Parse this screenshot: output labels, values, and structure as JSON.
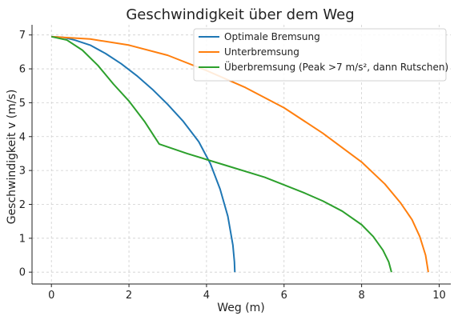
{
  "chart_data": {
    "type": "line",
    "title": "Geschwindigkeit über dem Weg",
    "xlabel": "Weg (m)",
    "ylabel": "Geschwindigkeit v (m/s)",
    "xlim": [
      -0.5,
      10.3
    ],
    "ylim": [
      -0.35,
      7.3
    ],
    "x_ticks": [
      0,
      2,
      4,
      6,
      8,
      10
    ],
    "y_ticks": [
      0,
      1,
      2,
      3,
      4,
      5,
      6,
      7
    ],
    "grid": true,
    "legend_position": "top-right",
    "series": [
      {
        "name": "Optimale Bremsung",
        "color": "#1f77b4",
        "points": [
          [
            0,
            6.95
          ],
          [
            0.3,
            6.93
          ],
          [
            0.6,
            6.85
          ],
          [
            1.0,
            6.7
          ],
          [
            1.4,
            6.45
          ],
          [
            1.8,
            6.15
          ],
          [
            2.2,
            5.8
          ],
          [
            2.6,
            5.4
          ],
          [
            3.0,
            4.95
          ],
          [
            3.4,
            4.45
          ],
          [
            3.8,
            3.85
          ],
          [
            4.1,
            3.2
          ],
          [
            4.35,
            2.45
          ],
          [
            4.55,
            1.65
          ],
          [
            4.68,
            0.8
          ],
          [
            4.72,
            0.3
          ],
          [
            4.73,
            0.0
          ]
        ]
      },
      {
        "name": "Unterbremsung",
        "color": "#ff7f0e",
        "points": [
          [
            0,
            6.95
          ],
          [
            1.0,
            6.88
          ],
          [
            2.0,
            6.7
          ],
          [
            3.0,
            6.4
          ],
          [
            4.0,
            5.95
          ],
          [
            5.0,
            5.45
          ],
          [
            6.0,
            4.85
          ],
          [
            7.0,
            4.1
          ],
          [
            8.0,
            3.25
          ],
          [
            8.6,
            2.6
          ],
          [
            9.0,
            2.05
          ],
          [
            9.3,
            1.55
          ],
          [
            9.5,
            1.05
          ],
          [
            9.65,
            0.5
          ],
          [
            9.72,
            0.0
          ]
        ]
      },
      {
        "name": "Überbremsung (Peak >7 m/s², dann Rutschen)",
        "color": "#2ca02c",
        "points": [
          [
            0,
            6.95
          ],
          [
            0.4,
            6.85
          ],
          [
            0.8,
            6.55
          ],
          [
            1.2,
            6.1
          ],
          [
            1.6,
            5.55
          ],
          [
            2.0,
            5.05
          ],
          [
            2.4,
            4.45
          ],
          [
            2.78,
            3.78
          ],
          [
            3.5,
            3.5
          ],
          [
            4.5,
            3.15
          ],
          [
            5.5,
            2.8
          ],
          [
            6.5,
            2.35
          ],
          [
            7.0,
            2.1
          ],
          [
            7.5,
            1.8
          ],
          [
            8.0,
            1.4
          ],
          [
            8.3,
            1.05
          ],
          [
            8.55,
            0.65
          ],
          [
            8.7,
            0.3
          ],
          [
            8.77,
            0.0
          ]
        ]
      }
    ]
  }
}
